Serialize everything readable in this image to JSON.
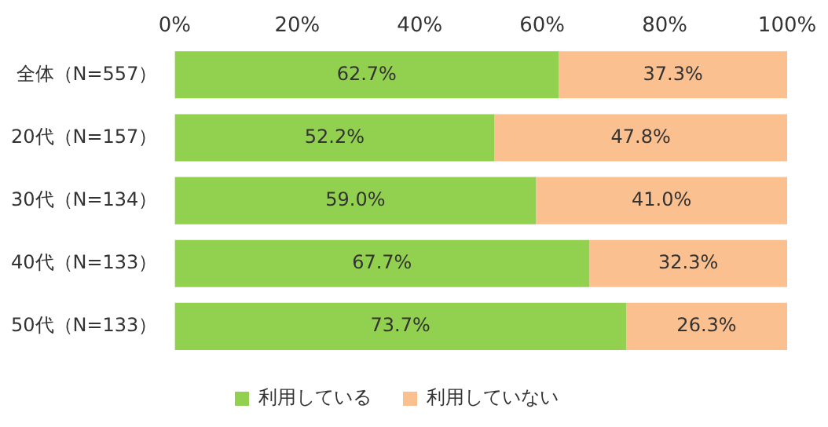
{
  "chart_data": {
    "type": "bar",
    "orientation": "horizontal",
    "stacked": true,
    "categories": [
      "全体（N=557）",
      "20代（N=157）",
      "30代（N=134）",
      "40代（N=133）",
      "50代（N=133）"
    ],
    "series": [
      {
        "name": "利用している",
        "color": "#92d050",
        "values": [
          62.7,
          52.2,
          59.0,
          67.7,
          73.7
        ],
        "value_labels": [
          "62.7%",
          "52.2%",
          "59.0%",
          "67.7%",
          "73.7%"
        ]
      },
      {
        "name": "利用していない",
        "color": "#fac090",
        "values": [
          37.3,
          47.8,
          41.0,
          32.3,
          26.3
        ],
        "value_labels": [
          "37.3%",
          "47.8%",
          "41.0%",
          "32.3%",
          "26.3%"
        ]
      }
    ],
    "xlim": [
      0,
      100
    ],
    "xticks": [
      {
        "value": 0,
        "label": "0%"
      },
      {
        "value": 20,
        "label": "20%"
      },
      {
        "value": 40,
        "label": "40%"
      },
      {
        "value": 60,
        "label": "60%"
      },
      {
        "value": 80,
        "label": "80%"
      },
      {
        "value": 100,
        "label": "100%"
      }
    ],
    "legend": "bottom"
  }
}
